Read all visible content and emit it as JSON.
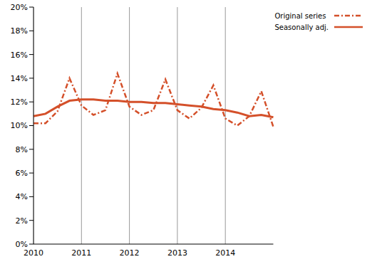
{
  "chart_data": {
    "type": "line",
    "categories": [
      "2010",
      null,
      null,
      null,
      "2011",
      null,
      null,
      null,
      "2012",
      null,
      null,
      null,
      "2013",
      null,
      null,
      null,
      "2014",
      null,
      null,
      null,
      null
    ],
    "series": [
      {
        "name": "Original series",
        "color": "#d4502a",
        "line_style": "dashdot",
        "values": [
          10.2,
          10.2,
          11.2,
          14.0,
          11.7,
          10.9,
          11.3,
          14.4,
          11.6,
          10.9,
          11.3,
          13.9,
          11.3,
          10.6,
          11.5,
          13.4,
          10.6,
          10.0,
          10.8,
          12.9,
          9.9
        ]
      },
      {
        "name": "Seasonally adj.",
        "color": "#d4502a",
        "line_style": "solid",
        "values": [
          10.8,
          11.0,
          11.6,
          12.1,
          12.2,
          12.2,
          12.1,
          12.1,
          12.0,
          12.0,
          11.9,
          11.9,
          11.8,
          11.7,
          11.6,
          11.4,
          11.3,
          11.1,
          10.8,
          10.9,
          10.7
        ]
      }
    ],
    "ylim": [
      0,
      20
    ],
    "yticks": [
      {
        "value": 0,
        "label": "0%"
      },
      {
        "value": 2,
        "label": "2%"
      },
      {
        "value": 4,
        "label": "4%"
      },
      {
        "value": 6,
        "label": "6%"
      },
      {
        "value": 8,
        "label": "8%"
      },
      {
        "value": 10,
        "label": "10%"
      },
      {
        "value": 12,
        "label": "12%"
      },
      {
        "value": 14,
        "label": "14%"
      },
      {
        "value": 16,
        "label": "16%"
      },
      {
        "value": 18,
        "label": "18%"
      },
      {
        "value": 20,
        "label": "20%"
      }
    ],
    "grid": true,
    "legend": "top-right"
  }
}
